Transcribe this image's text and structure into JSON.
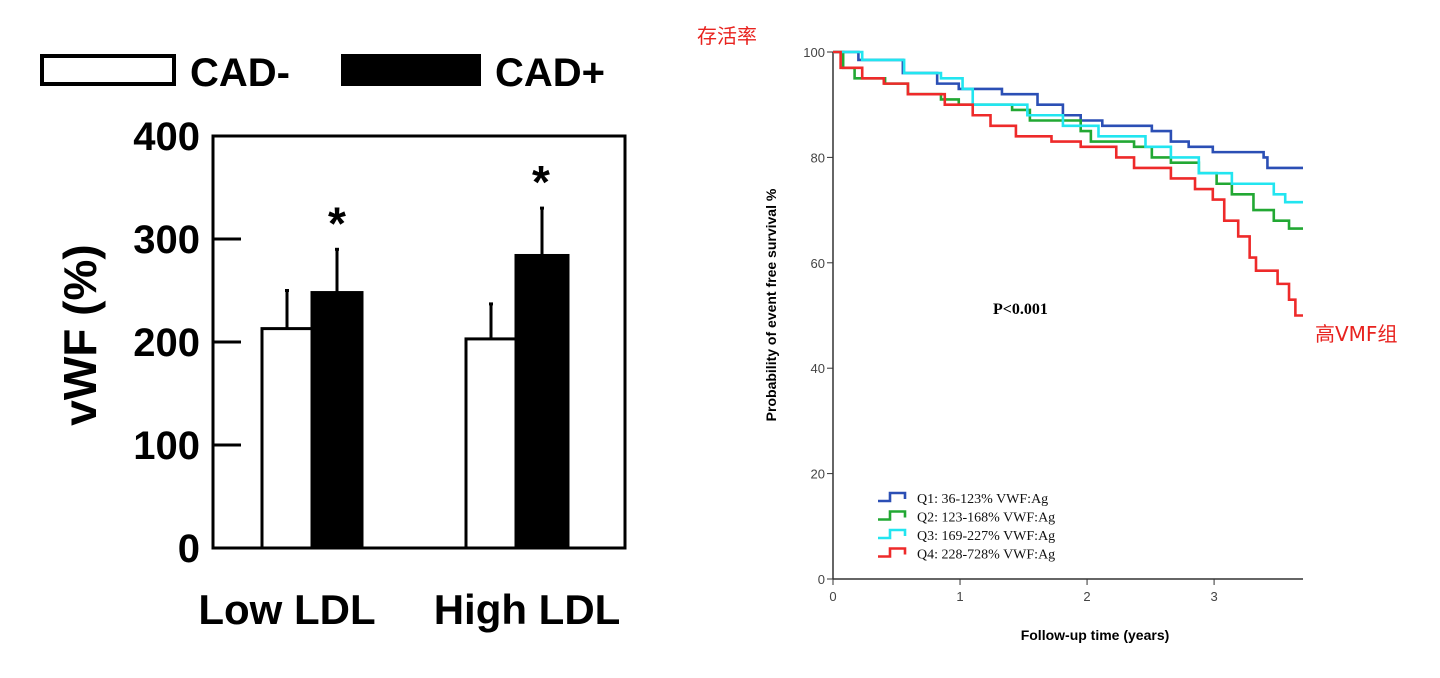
{
  "annotations": {
    "top_label": "存活率",
    "right_label": "高VMF组",
    "color": "#e8231f"
  },
  "chart_data": [
    {
      "type": "bar",
      "title": "",
      "legend": [
        {
          "name": "CAD-",
          "color": "#ffffff"
        },
        {
          "name": "CAD+",
          "color": "#000000"
        }
      ],
      "legend_position": "top",
      "categories": [
        "Low LDL",
        "High LDL"
      ],
      "series": [
        {
          "name": "CAD-",
          "values": [
            213,
            203
          ],
          "errors": [
            37,
            34
          ]
        },
        {
          "name": "CAD+",
          "values": [
            248,
            284
          ],
          "errors": [
            42,
            46
          ]
        }
      ],
      "significance": [
        {
          "category": "Low LDL",
          "series": "CAD+",
          "mark": "*"
        },
        {
          "category": "High LDL",
          "series": "CAD+",
          "mark": "*"
        }
      ],
      "ylabel": "vWF (%)",
      "xlabel": "",
      "ylim": [
        0,
        400
      ],
      "yticks": [
        "0",
        "100",
        "200",
        "300",
        "400"
      ]
    },
    {
      "type": "line",
      "step": true,
      "title": "",
      "xlabel": "Follow-up time (years)",
      "ylabel": "Probability of event free survival %",
      "xlim": [
        0,
        3.7
      ],
      "ylim": [
        0,
        100
      ],
      "xticks": [
        "0",
        "1",
        "2",
        "3"
      ],
      "yticks": [
        "0",
        "20",
        "40",
        "60",
        "80",
        "100"
      ],
      "annotation": "P<0.001",
      "legend_position": "bottom-left",
      "series": [
        {
          "name": "Q1: 36-123%   VWF:Ag",
          "color": "#2b4fb5",
          "x": [
            0,
            0.2,
            0.55,
            0.82,
            0.99,
            1.33,
            1.61,
            1.81,
            1.95,
            2.12,
            2.51,
            2.66,
            2.8,
            2.99,
            3.39,
            3.42,
            3.7
          ],
          "y": [
            100,
            98.5,
            96,
            94,
            93,
            92,
            90,
            88,
            87,
            86,
            85,
            83,
            82,
            81,
            80,
            78,
            78
          ]
        },
        {
          "name": "Q2: 123-168% VWF:Ag",
          "color": "#22a833",
          "x": [
            0,
            0.08,
            0.17,
            0.41,
            0.59,
            0.85,
            0.99,
            1.41,
            1.55,
            1.95,
            2.03,
            2.37,
            2.51,
            2.66,
            2.88,
            3.02,
            3.14,
            3.31,
            3.47,
            3.59,
            3.7
          ],
          "y": [
            100,
            97,
            95,
            94,
            92,
            91,
            90,
            89,
            87,
            85,
            83,
            82,
            80,
            79,
            77,
            75,
            73,
            70,
            68,
            66.5,
            66.5
          ]
        },
        {
          "name": "Q3: 169-227% VWF:Ag",
          "color": "#22e5f0",
          "x": [
            0,
            0.23,
            0.56,
            0.85,
            1.02,
            1.1,
            1.53,
            1.81,
            2.09,
            2.46,
            2.66,
            2.88,
            3.14,
            3.47,
            3.56,
            3.7
          ],
          "y": [
            100,
            98.5,
            96,
            95,
            93,
            90,
            88,
            86,
            84,
            82,
            80,
            77,
            75,
            73,
            71.5,
            71.5
          ]
        },
        {
          "name": "Q4: 228-728% VWF:Ag",
          "color": "#ee2a2a",
          "x": [
            0,
            0.06,
            0.23,
            0.4,
            0.59,
            0.88,
            1.1,
            1.24,
            1.44,
            1.72,
            1.95,
            2.23,
            2.37,
            2.66,
            2.85,
            2.99,
            3.08,
            3.19,
            3.28,
            3.33,
            3.5,
            3.59,
            3.64,
            3.7
          ],
          "y": [
            100,
            97,
            95,
            94,
            92,
            90,
            88,
            86,
            84,
            83,
            82,
            80,
            78,
            76,
            74,
            72,
            68,
            65,
            61,
            58.5,
            56,
            53,
            50,
            50
          ]
        }
      ]
    }
  ]
}
